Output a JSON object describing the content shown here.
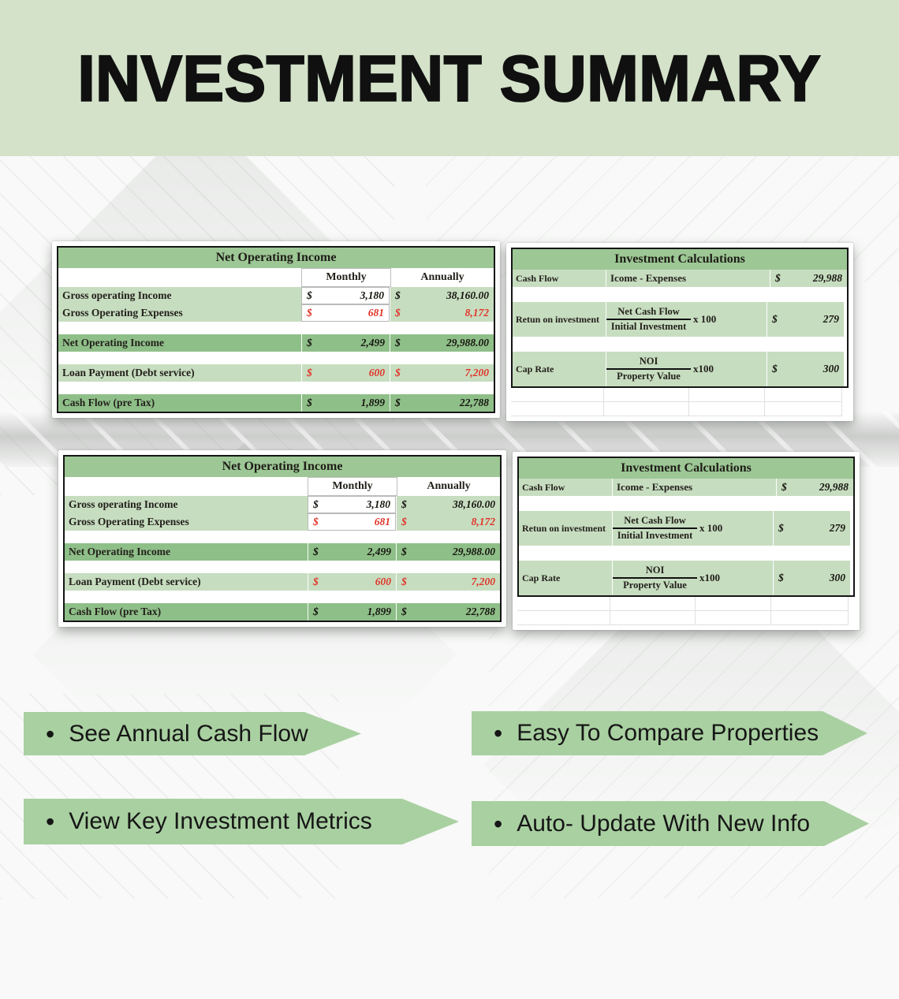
{
  "header": {
    "title": "INVESTMENT SUMMARY"
  },
  "colors": {
    "header_band": "#d3e2c9",
    "banner_green": "#a9d0a1",
    "table_header_green": "#9dc795",
    "row_light_green": "#c7ddc0",
    "row_dark_green": "#8fbf89",
    "negative_red": "#e0352a"
  },
  "noi_table": {
    "title": "Net Operating Income",
    "currency": "$",
    "col_headers": [
      "Monthly",
      "Annually"
    ],
    "rows": [
      {
        "type": "data",
        "label": "Gross operating Income",
        "monthly": "3,180",
        "annually": "38,160.00",
        "tone": "light",
        "negative": false,
        "monthly_white": true
      },
      {
        "type": "data",
        "label": "Gross Operating Expenses",
        "monthly": "681",
        "annually": "8,172",
        "tone": "light",
        "negative": true,
        "monthly_white": true
      },
      {
        "type": "blank"
      },
      {
        "type": "data",
        "label": "Net Operating Income",
        "monthly": "2,499",
        "annually": "29,988.00",
        "tone": "dark",
        "negative": false,
        "monthly_white": false
      },
      {
        "type": "blank"
      },
      {
        "type": "data",
        "label": "Loan Payment (Debt service)",
        "monthly": "600",
        "annually": "7,200",
        "tone": "light",
        "negative": true,
        "monthly_white": false
      },
      {
        "type": "blank"
      },
      {
        "type": "data",
        "label": "Cash Flow (pre Tax)",
        "monthly": "1,899",
        "annually": "22,788",
        "tone": "dark",
        "negative": false,
        "monthly_white": false
      }
    ]
  },
  "calc_table": {
    "title": "Investment Calculations",
    "currency": "$",
    "rows": [
      {
        "type": "simple",
        "label": "Cash Flow",
        "formula": "Icome - Expenses",
        "value": "29,988"
      },
      {
        "type": "fraction",
        "label": "Retun on investment",
        "numerator": "Net Cash Flow",
        "denominator": "Initial Investment",
        "multiplier": "x 100",
        "value": "279"
      },
      {
        "type": "fraction",
        "label": "Cap Rate",
        "numerator": "NOI",
        "denominator": "Property Value",
        "multiplier": "x100",
        "value": "300"
      }
    ]
  },
  "banners": {
    "bullet": "•",
    "items": [
      {
        "text": "See Annual Cash Flow"
      },
      {
        "text": "Easy To Compare Properties"
      },
      {
        "text": "View Key Investment Metrics"
      },
      {
        "text": "Auto- Update With New Info"
      }
    ]
  }
}
